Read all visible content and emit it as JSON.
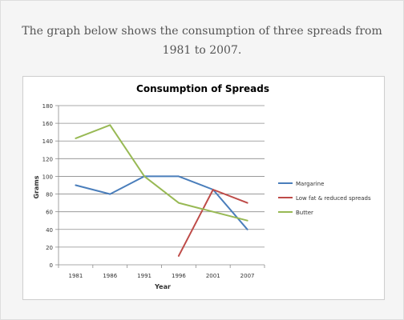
{
  "caption": "The graph below shows the consumption of three spreads from 1981 to 2007.",
  "chart_data": {
    "type": "line",
    "title": "Consumption of Spreads",
    "xlabel": "Year",
    "ylabel": "Grams",
    "categories": [
      "1981",
      "1986",
      "1991",
      "1996",
      "2001",
      "2007"
    ],
    "ylim": [
      0,
      180
    ],
    "yticks": [
      0,
      20,
      40,
      60,
      80,
      100,
      120,
      140,
      160,
      180
    ],
    "grid": true,
    "legend_position": "right",
    "series": [
      {
        "name": "Margarine",
        "color": "#4a7ebb",
        "values": [
          90,
          80,
          100,
          100,
          85,
          40
        ]
      },
      {
        "name": "Low fat & reduced spreads",
        "color": "#be4b48",
        "values": [
          null,
          null,
          null,
          10,
          85,
          70
        ]
      },
      {
        "name": "Butter",
        "color": "#98b954",
        "values": [
          143,
          158,
          100,
          70,
          60,
          50
        ]
      }
    ]
  }
}
